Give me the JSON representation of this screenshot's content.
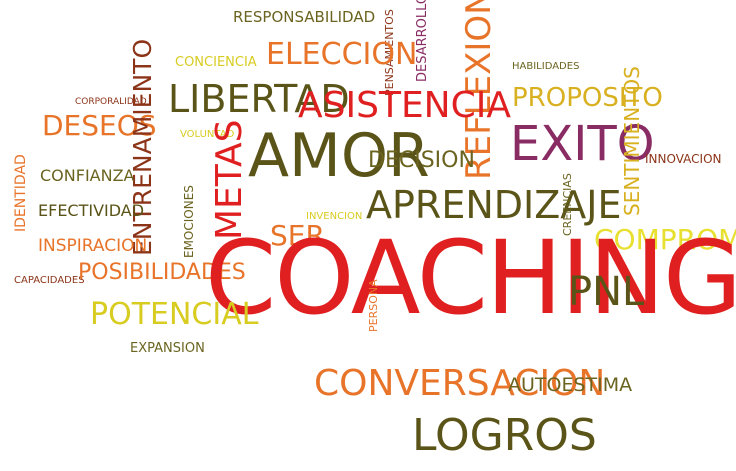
{
  "colors": {
    "red": "#e02020",
    "orange": "#e8742a",
    "olive": "#5a5418",
    "yellow": "#e8e030",
    "purple": "#8a2c64",
    "brown": "#8c3418"
  },
  "words": {
    "coaching": "COACHING",
    "amor": "AMOR",
    "asistencia": "ASISTENCIA",
    "aprendizaje": "APRENDIZAJE",
    "exito": "EXITO",
    "libertad": "LIBERTAD",
    "eleccion": "ELECCION",
    "metas": "METAS",
    "reflexion": "REFLEXION",
    "proposito": "PROPOSITO",
    "decision": "DECISION",
    "compromiso": "COMPROMISO",
    "pnl": "PNL",
    "logros": "LOGROS",
    "conversacion": "CONVERSACION",
    "autoestima": "AUTOESTIMA",
    "potencial": "POTENCIAL",
    "posibilidades": "POSIBILIDADES",
    "inspiracion": "INSPIRACION",
    "efectividad": "EFECTIVIDAD",
    "confianza": "CONFIANZA",
    "deseos": "DESEOS",
    "entrenamiento": "ENTRENAMIENTO",
    "responsabilidad": "RESPONSABILIDAD",
    "conciencia": "CONCIENCIA",
    "pensamientos": "PENSAMIENTOS",
    "desarrollo": "DESARROLLO",
    "habilidades": "HABILIDADES",
    "corporalidad": "CORPORALIDAD",
    "voluntad": "VOLUNTAD",
    "emociones": "EMOCIONES",
    "identidad": "IDENTIDAD",
    "capacidades": "CAPACIDADES",
    "ser": "SER",
    "invencion": "INVENCION",
    "persona": "PERSONA",
    "expansion": "EXPANSION",
    "innovacion": "INNOVACION",
    "sentimientos": "SENTIMIENTOS",
    "creencias": "CREENCIAS"
  }
}
